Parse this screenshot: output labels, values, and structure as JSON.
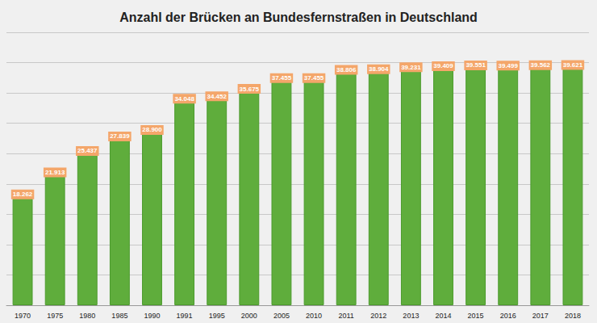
{
  "chart_data": {
    "type": "bar",
    "title": "Anzahl der Brücken an Bundesfernstraßen in Deutschland",
    "categories": [
      "1970",
      "1975",
      "1980",
      "1985",
      "1990",
      "1991",
      "1995",
      "2000",
      "2005",
      "2010",
      "2011",
      "2012",
      "2013",
      "2014",
      "2015",
      "2016",
      "2017",
      "2018"
    ],
    "values": [
      18262,
      21913,
      25437,
      27839,
      28900,
      34048,
      34452,
      35675,
      37455,
      37455,
      38806,
      38904,
      39231,
      39409,
      39551,
      39499,
      39562,
      39621
    ],
    "value_labels": [
      "18.262",
      "21.913",
      "25.437",
      "27.839",
      "28.900",
      "34.048",
      "34.452",
      "35.675",
      "37.455",
      "37.455",
      "38.806",
      "38.904",
      "39.231",
      "39.409",
      "39.551",
      "39.499",
      "39.562",
      "39.621"
    ],
    "color": "#5fad3c",
    "ylim": [
      0,
      45000
    ],
    "yticks": [
      0,
      5000,
      10000,
      15000,
      20000,
      25000,
      30000,
      35000,
      40000,
      45000
    ],
    "grid": true,
    "data_labels": true,
    "tick_labels": "x"
  }
}
